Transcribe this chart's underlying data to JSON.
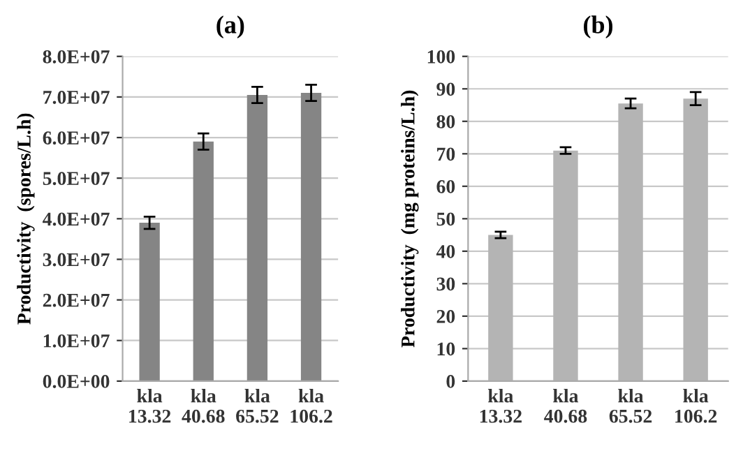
{
  "chart_data": [
    {
      "type": "bar",
      "title": "(a)",
      "ylabel": "Productivity  (spores/L.h)",
      "categories": [
        "kla\n13.32",
        "kla\n40.68",
        "kla\n65.52",
        "kla\n106.2"
      ],
      "series": [
        {
          "color": "#858585",
          "values": [
            39000000,
            59000000,
            70500000,
            71000000
          ],
          "errors": [
            1500000,
            2000000,
            2000000,
            2000000
          ]
        }
      ],
      "ylim": [
        0,
        80000000
      ],
      "yticks": [
        {
          "value": 0,
          "label": "0.0E+00"
        },
        {
          "value": 10000000,
          "label": "1.0E+07"
        },
        {
          "value": 20000000,
          "label": "2.0E+07"
        },
        {
          "value": 30000000,
          "label": "3.0E+07"
        },
        {
          "value": 40000000,
          "label": "4.0E+07"
        },
        {
          "value": 50000000,
          "label": "5.0E+07"
        },
        {
          "value": 60000000,
          "label": "6.0E+07"
        },
        {
          "value": 70000000,
          "label": "7.0E+07"
        },
        {
          "value": 80000000,
          "label": "8.0E+07"
        }
      ],
      "grid": "y"
    },
    {
      "type": "bar",
      "title": "(b)",
      "ylabel": "Productivity  (mg proteins/L.h)",
      "categories": [
        "kla\n13.32",
        "kla\n40.68",
        "kla\n65.52",
        "kla\n106.2"
      ],
      "series": [
        {
          "color": "#b4b4b4",
          "values": [
            45,
            71,
            85.5,
            87
          ],
          "errors": [
            1,
            1,
            1.5,
            2
          ]
        }
      ],
      "ylim": [
        0,
        100
      ],
      "yticks": [
        0,
        10,
        20,
        30,
        40,
        50,
        60,
        70,
        80,
        90,
        100
      ],
      "grid": "y"
    }
  ]
}
